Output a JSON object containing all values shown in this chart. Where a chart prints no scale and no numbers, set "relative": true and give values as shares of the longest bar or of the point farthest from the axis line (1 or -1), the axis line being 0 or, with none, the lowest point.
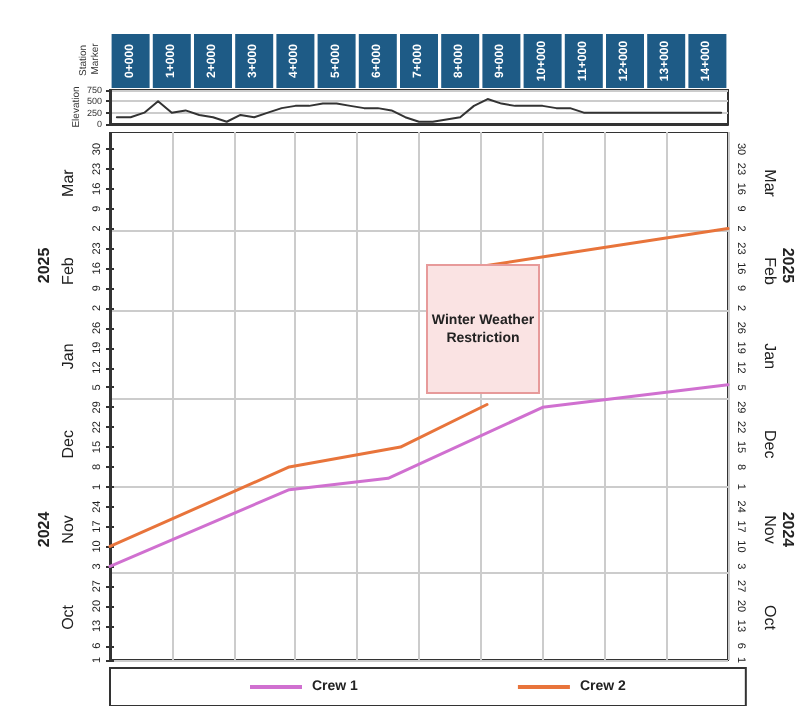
{
  "chart_data": [
    {
      "type": "line",
      "ylabel": "Elevation",
      "categories": [
        null,
        "0+000",
        null,
        null,
        "1+000",
        null,
        null,
        "2+000",
        null,
        null,
        "3+000",
        null,
        null,
        "4+000",
        null,
        null,
        "5+000",
        null,
        null,
        "6+000",
        null,
        null,
        "7+000",
        null,
        null,
        "8+000",
        null,
        null,
        "9+000",
        null,
        null,
        "10+000",
        null,
        null,
        "11+000",
        null,
        null,
        "12+000",
        null,
        null,
        "13+000",
        null,
        null,
        "14+000",
        null
      ],
      "ylim": [
        0,
        750
      ],
      "yticks": [
        0,
        250,
        500,
        750
      ],
      "grid": "y",
      "marker": "none",
      "legend": false,
      "series": [
        {
          "color": "#333333",
          "values": [
            150,
            150,
            250,
            500,
            250,
            300,
            200,
            150,
            50,
            200,
            150,
            250,
            350,
            400,
            400,
            450,
            450,
            400,
            350,
            350,
            300,
            150,
            50,
            50,
            100,
            150,
            400,
            550,
            450,
            400,
            400,
            400,
            350,
            350,
            250,
            250,
            250,
            250,
            250,
            250,
            250,
            250,
            250,
            250,
            250
          ]
        }
      ],
      "annotations": [
        "Station Marker"
      ]
    },
    {
      "type": "line",
      "orientation": "horizontal",
      "relative": true,
      "ylim": [
        "2024-10-01",
        "2025-04-05"
      ],
      "yticks": [
        {
          "value": "2024-10-01",
          "label": "1"
        },
        {
          "value": "2024-10-06",
          "label": "6"
        },
        {
          "value": "2024-10-13",
          "label": "13"
        },
        {
          "value": "2024-10-20",
          "label": "20"
        },
        {
          "value": "2024-10-27",
          "label": "27"
        },
        {
          "value": "2024-11-01",
          "label": null
        },
        {
          "value": "2024-11-03",
          "label": "3"
        },
        {
          "value": "2024-11-10",
          "label": "10"
        },
        {
          "value": "2024-11-17",
          "label": "17"
        },
        {
          "value": "2024-11-24",
          "label": "24"
        },
        {
          "value": "2024-12-01",
          "label": "1"
        },
        {
          "value": "2024-12-08",
          "label": "8"
        },
        {
          "value": "2024-12-15",
          "label": "15"
        },
        {
          "value": "2024-12-22",
          "label": "22"
        },
        {
          "value": "2024-12-29",
          "label": "29"
        },
        {
          "value": "2025-01-01",
          "label": null
        },
        {
          "value": "2025-01-05",
          "label": "5"
        },
        {
          "value": "2025-01-12",
          "label": "12"
        },
        {
          "value": "2025-01-19",
          "label": "19"
        },
        {
          "value": "2025-01-26",
          "label": "26"
        },
        {
          "value": "2025-02-01",
          "label": null
        },
        {
          "value": "2025-02-02",
          "label": "2"
        },
        {
          "value": "2025-02-09",
          "label": "9"
        },
        {
          "value": "2025-02-16",
          "label": "16"
        },
        {
          "value": "2025-02-23",
          "label": "23"
        },
        {
          "value": "2025-03-01",
          "label": null
        },
        {
          "value": "2025-03-02",
          "label": "2"
        },
        {
          "value": "2025-03-09",
          "label": "9"
        },
        {
          "value": "2025-03-16",
          "label": "16"
        },
        {
          "value": "2025-03-23",
          "label": "23"
        },
        {
          "value": "2025-03-30",
          "label": "30"
        }
      ],
      "y2lim": [
        "2024-10-01",
        "2025-04-05"
      ],
      "y2ticks": [
        {
          "value": "2024-10-01",
          "label": "1"
        },
        {
          "value": "2024-10-06",
          "label": "6"
        },
        {
          "value": "2024-10-13",
          "label": "13"
        },
        {
          "value": "2024-10-20",
          "label": "20"
        },
        {
          "value": "2024-10-27",
          "label": "27"
        },
        {
          "value": "2024-11-03",
          "label": "3"
        },
        {
          "value": "2024-11-10",
          "label": "10"
        },
        {
          "value": "2024-11-17",
          "label": "17"
        },
        {
          "value": "2024-11-24",
          "label": "24"
        },
        {
          "value": "2024-12-01",
          "label": "1"
        },
        {
          "value": "2024-12-08",
          "label": "8"
        },
        {
          "value": "2024-12-15",
          "label": "15"
        },
        {
          "value": "2024-12-22",
          "label": "22"
        },
        {
          "value": "2024-12-29",
          "label": "29"
        },
        {
          "value": "2025-01-05",
          "label": "5"
        },
        {
          "value": "2025-01-12",
          "label": "12"
        },
        {
          "value": "2025-01-19",
          "label": "19"
        },
        {
          "value": "2025-01-26",
          "label": "26"
        },
        {
          "value": "2025-02-02",
          "label": "2"
        },
        {
          "value": "2025-02-09",
          "label": "9"
        },
        {
          "value": "2025-02-16",
          "label": "16"
        },
        {
          "value": "2025-02-23",
          "label": "23"
        },
        {
          "value": "2025-03-02",
          "label": "2"
        },
        {
          "value": "2025-03-09",
          "label": "9"
        },
        {
          "value": "2025-03-16",
          "label": "16"
        },
        {
          "value": "2025-03-23",
          "label": "23"
        },
        {
          "value": "2025-03-30",
          "label": "30"
        }
      ],
      "y3lim": [
        "2024-10-01",
        "2025-04-05"
      ],
      "y3ticks": [
        {
          "value": "2024-10-16",
          "label": "Oct"
        },
        {
          "value": "2024-11-16",
          "label": "Nov"
        },
        {
          "value": "2024-12-16",
          "label": "Dec"
        },
        {
          "value": "2025-01-16",
          "label": "Jan"
        },
        {
          "value": "2025-02-15",
          "label": "Feb"
        },
        {
          "value": "2025-03-18",
          "label": "Mar"
        }
      ],
      "grid": true,
      "marker": "none",
      "line_style": "solid",
      "legend": "bottom",
      "series": [
        {
          "name": "Crew 1",
          "color": "#d070d0",
          "x": [
            "2024-11-03",
            "2024-11-30",
            "2024-12-04",
            "2024-12-29",
            "2025-01-06"
          ],
          "values": [
            0,
            0.29,
            0.45,
            0.7,
            1
          ]
        },
        {
          "name": "Crew 2",
          "color": "#e8743b",
          "x": [
            "2024-11-10",
            "2024-12-08",
            "2024-12-15",
            "2024-12-30",
            "2025-01-20",
            "2025-02-17",
            "2025-03-02"
          ],
          "values": [
            0,
            0.29,
            0.47,
            0.61,
            null,
            0.61,
            1
          ]
        }
      ],
      "annotations": [
        "Winter Weather Restriction",
        "2024",
        "2025"
      ]
    }
  ]
}
